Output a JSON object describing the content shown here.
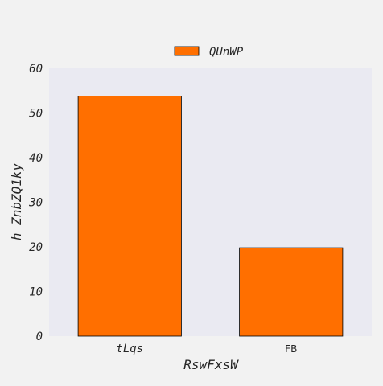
{
  "chart_data": {
    "type": "bar",
    "categories": [
      "tLqs",
      "FB"
    ],
    "series": [
      {
        "name": "QUnWP",
        "values": [
          53.8,
          19.8
        ],
        "color": "#ff6f00"
      }
    ],
    "xlabel": "RswFxsW",
    "ylabel": "h ZnbZQ1ky",
    "ylim": [
      0,
      60
    ],
    "yticks": [
      0,
      10,
      20,
      30,
      40,
      50,
      60
    ],
    "grid": false,
    "legend": "top-center",
    "colors": {
      "plot_background": "#eaeaf2",
      "figure_background": "#f2f2f2",
      "bar_edge": "#000000"
    }
  }
}
